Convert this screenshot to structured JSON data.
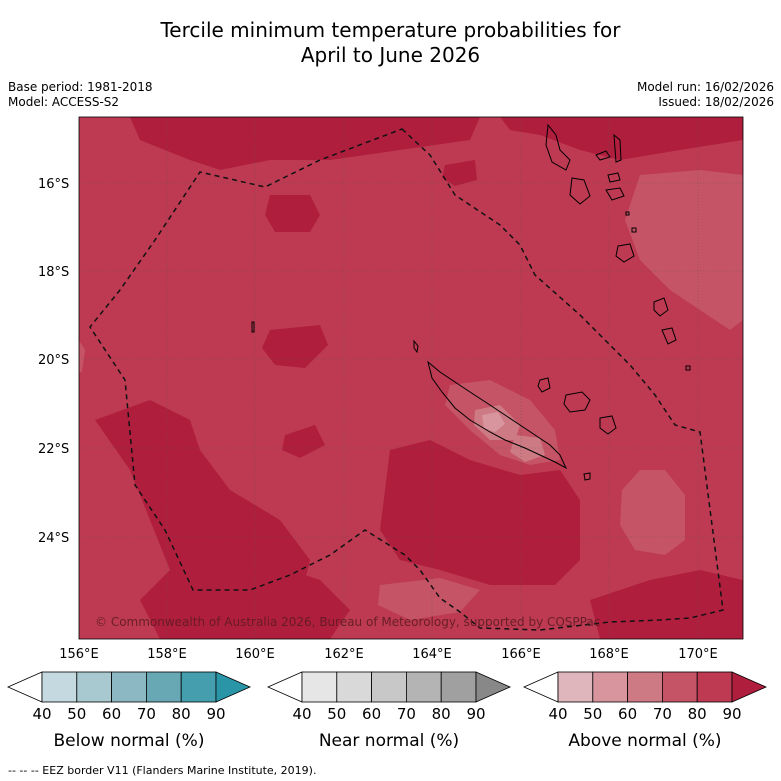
{
  "title_line1": "Tercile minimum temperature probabilities for",
  "title_line2": "April to June 2026",
  "base_period": "Base period: 1981-2018",
  "model": "Model: ACCESS-S2",
  "model_run": "Model run: 16/02/2026",
  "issued": "Issued: 18/02/2026",
  "lat_labels": [
    "16°S",
    "18°S",
    "20°S",
    "22°S",
    "24°S"
  ],
  "lon_labels": [
    "156°E",
    "158°E",
    "160°E",
    "162°E",
    "164°E",
    "166°E",
    "168°E",
    "170°E"
  ],
  "copyright": "© Commonwealth of Australia 2026, Bureau of Meteorology, supported by COSPPac",
  "colorbars": [
    {
      "label": "Below normal (%)",
      "ticks": [
        "40",
        "50",
        "60",
        "70",
        "80",
        "90"
      ],
      "colors": [
        "#ffffff",
        "#c4dae0",
        "#a7c9cf",
        "#8bb8c2",
        "#68a7b4",
        "#449eae",
        "#2b95a8"
      ]
    },
    {
      "label": "Near normal (%)",
      "ticks": [
        "40",
        "50",
        "60",
        "70",
        "80",
        "90"
      ],
      "colors": [
        "#ffffff",
        "#e6e6e6",
        "#d9d9d9",
        "#c8c8c8",
        "#b4b4b4",
        "#a0a0a0",
        "#888888"
      ]
    },
    {
      "label": "Above normal (%)",
      "ticks": [
        "40",
        "50",
        "60",
        "70",
        "80",
        "90"
      ],
      "colors": [
        "#ffffff",
        "#e0b6bd",
        "#d8959e",
        "#cd7a84",
        "#c45466",
        "#bd3a52",
        "#b01e3e"
      ]
    }
  ],
  "footer": "--  --  -- EEZ border V11 (Flanders Marine Institute, 2019).",
  "map_colors": {
    "above_80": "#bd3a52",
    "above_90": "#b01e3e",
    "above_70": "#c45466",
    "above_60": "#cd7a84",
    "above_50": "#d8959e"
  }
}
